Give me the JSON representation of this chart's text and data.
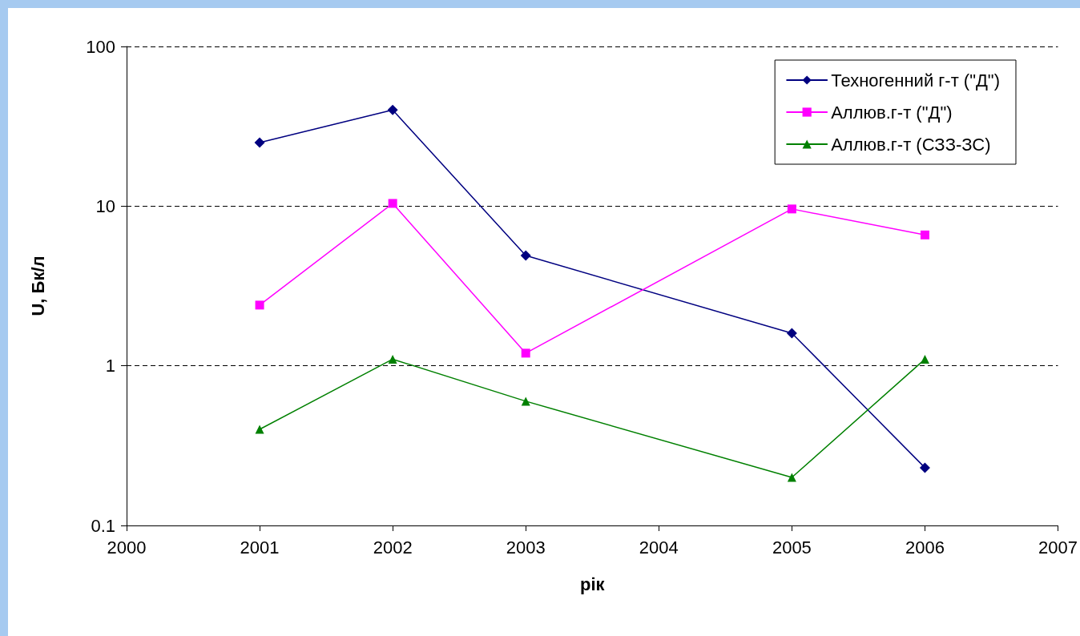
{
  "chart_data": {
    "type": "line",
    "xlabel": "рік",
    "ylabel": "U, Бк/л",
    "log": "y",
    "xlim": [
      2000,
      2007
    ],
    "xticks": [
      2000,
      2001,
      2002,
      2003,
      2004,
      2005,
      2006,
      2007
    ],
    "ylim": [
      0.1,
      100
    ],
    "yticks": [
      0.1,
      1,
      10,
      100
    ],
    "grid": "y",
    "legend": "top right",
    "series": [
      {
        "name": "Техногенний г-т (\"Д\")",
        "color": "#000080",
        "marker": "diamond",
        "x": [
          2001,
          2002,
          2003,
          2005,
          2006
        ],
        "values": [
          25,
          40,
          4.9,
          1.6,
          0.23
        ]
      },
      {
        "name": "Аллюв.г-т (\"Д\")",
        "color": "#ff00ff",
        "marker": "square",
        "x": [
          2001,
          2002,
          2003,
          2005,
          2006
        ],
        "values": [
          2.4,
          10.4,
          1.2,
          9.6,
          6.6
        ]
      },
      {
        "name": "Аллюв.г-т (СЗЗ-ЗС)",
        "color": "#008000",
        "marker": "triangle",
        "x": [
          2001,
          2002,
          2003,
          2005,
          2006
        ],
        "values": [
          0.4,
          1.1,
          0.6,
          0.2,
          1.1
        ]
      }
    ]
  }
}
